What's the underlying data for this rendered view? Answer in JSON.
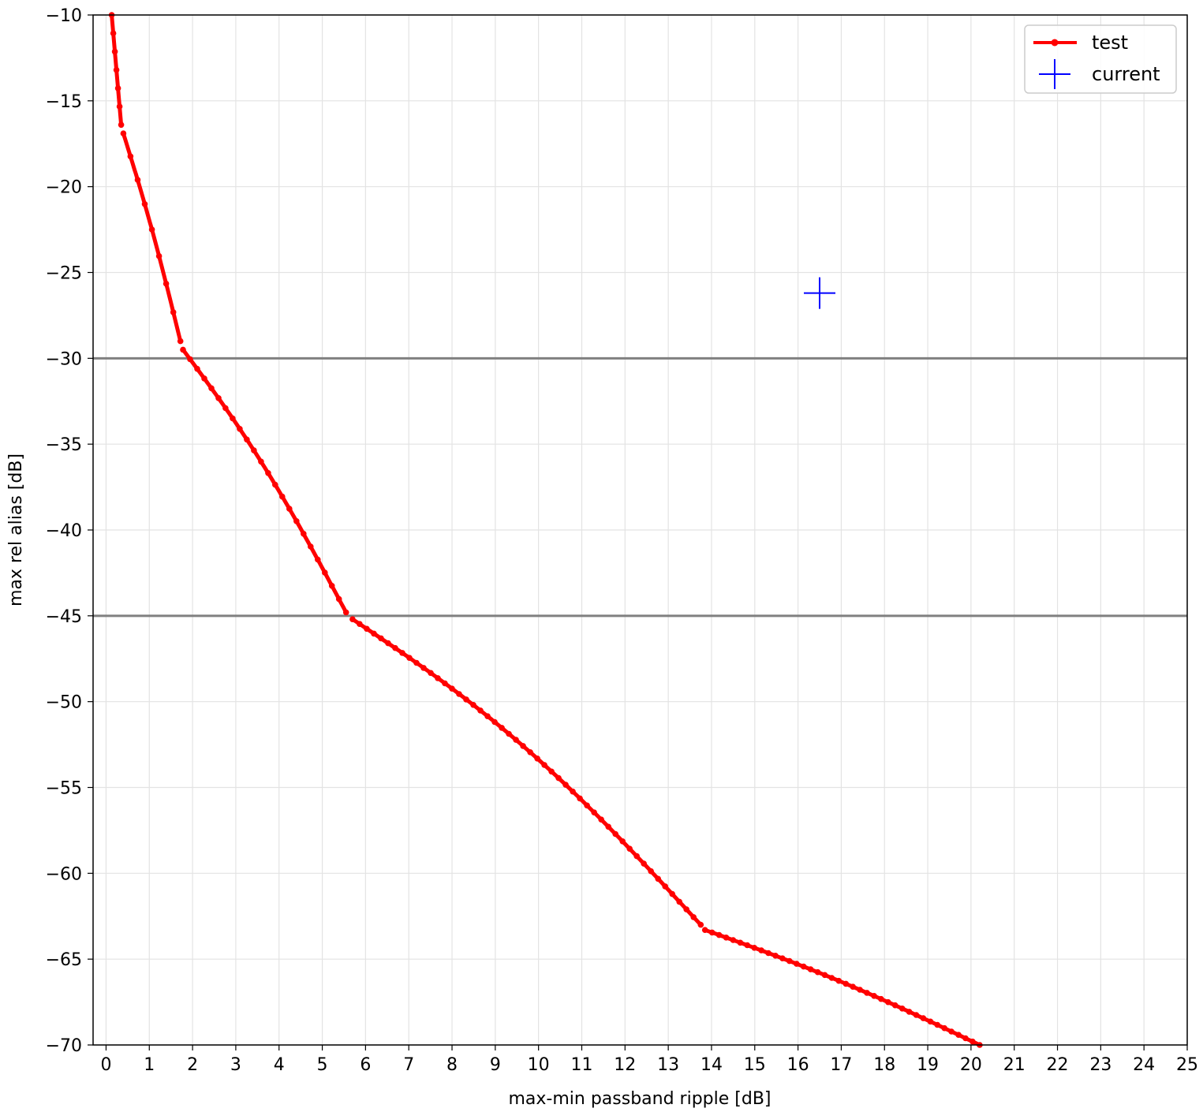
{
  "chart_data": {
    "type": "line",
    "xlabel": "max-min passband ripple [dB]",
    "ylabel": "max rel alias [dB]",
    "xlim": [
      -0.3,
      25
    ],
    "ylim": [
      -70,
      -10
    ],
    "xticks": [
      0,
      1,
      2,
      3,
      4,
      5,
      6,
      7,
      8,
      9,
      10,
      11,
      12,
      13,
      14,
      15,
      16,
      17,
      18,
      19,
      20,
      21,
      22,
      23,
      24,
      25
    ],
    "yticks": [
      -10,
      -15,
      -20,
      -25,
      -30,
      -35,
      -40,
      -45,
      -50,
      -55,
      -60,
      -65,
      -70
    ],
    "grid": true,
    "legend_position": "top-right",
    "reference_lines": [
      {
        "orientation": "horizontal",
        "y": -30,
        "color": "#808080"
      },
      {
        "orientation": "horizontal",
        "y": -45,
        "color": "#808080"
      }
    ],
    "series": [
      {
        "name": "test",
        "color": "#ff0000",
        "marker": "dot",
        "segments": [
          {
            "x_start": 0.13,
            "x_end": 0.35,
            "y_start": -10.0,
            "y_end": -16.4,
            "curvature": 0
          },
          {
            "x_start": 0.4,
            "x_end": 1.72,
            "y_start": -16.9,
            "y_end": -29.0,
            "curvature": 0.25
          },
          {
            "x_start": 1.78,
            "x_end": 5.55,
            "y_start": -29.5,
            "y_end": -44.8,
            "curvature": 0.35
          },
          {
            "x_start": 5.7,
            "x_end": 13.75,
            "y_start": -45.2,
            "y_end": -63.0,
            "curvature": 0.5
          },
          {
            "x_start": 13.85,
            "x_end": 20.2,
            "y_start": -63.3,
            "y_end": -70.0,
            "curvature": 0.3
          }
        ]
      },
      {
        "name": "current",
        "color": "#0000ff",
        "marker": "plus",
        "points": [
          {
            "x": 16.5,
            "y": -26.2
          }
        ]
      }
    ]
  }
}
